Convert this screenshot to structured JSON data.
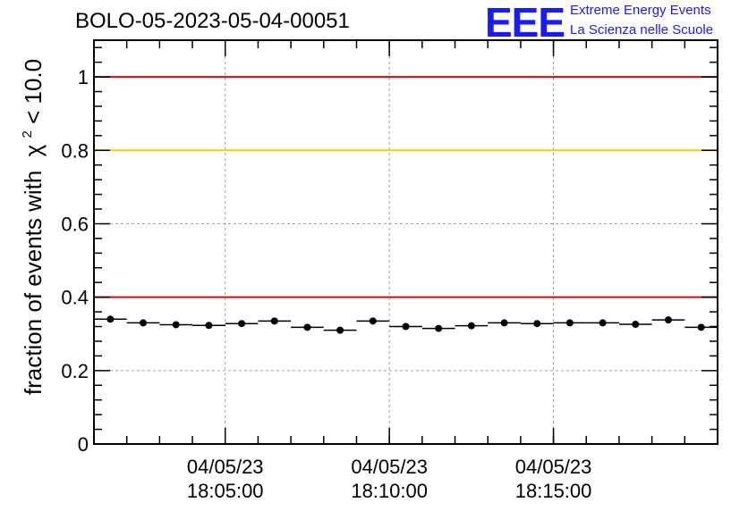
{
  "header": {
    "title": "BOLO-05-2023-05-04-00051",
    "logo_mark": "EEE",
    "logo_line1": "Extreme Energy Events",
    "logo_line2": "La Scienza nelle Scuole"
  },
  "colors": {
    "red_threshold": "#e8000b",
    "yellow_threshold": "#ffcc00",
    "logo": "#1a1aff"
  },
  "chart_data": {
    "type": "scatter",
    "title": "BOLO-05-2023-05-04-00051",
    "ylabel": "fraction of events with",
    "ylabel_chi": "χ",
    "ylabel_sup": "2",
    "ylabel_tail": " < 10.0",
    "xlabel": "",
    "ylim": [
      0,
      1.1
    ],
    "y_ticks": [
      {
        "value": 0,
        "label": "0"
      },
      {
        "value": 0.2,
        "label": "0.2"
      },
      {
        "value": 0.4,
        "label": "0.4"
      },
      {
        "value": 0.6,
        "label": "0.6"
      },
      {
        "value": 0.8,
        "label": "0.8"
      },
      {
        "value": 1.0,
        "label": "1"
      }
    ],
    "x_range": [
      "18:01:00",
      "18:20:00"
    ],
    "x_ticks": [
      {
        "time": "18:05:00",
        "date": "04/05/23"
      },
      {
        "time": "18:10:00",
        "date": "04/05/23"
      },
      {
        "time": "18:15:00",
        "date": "04/05/23"
      }
    ],
    "bin_width_seconds": 60,
    "grid": true,
    "reference_lines": [
      {
        "value": 1.0,
        "color": "#e8000b"
      },
      {
        "value": 0.8,
        "color": "#ffcc00"
      },
      {
        "value": 0.4,
        "color": "#e8000b"
      }
    ],
    "series": [
      {
        "bin_start": [
          "18:01:00",
          "18:02:00",
          "18:03:00",
          "18:04:00",
          "18:05:00",
          "18:06:00",
          "18:07:00",
          "18:08:00",
          "18:09:00",
          "18:10:00",
          "18:11:00",
          "18:12:00",
          "18:13:00",
          "18:14:00",
          "18:15:00",
          "18:16:00",
          "18:17:00",
          "18:18:00",
          "18:19:00"
        ],
        "values": [
          0.34,
          0.33,
          0.325,
          0.323,
          0.328,
          0.335,
          0.318,
          0.31,
          0.335,
          0.32,
          0.315,
          0.322,
          0.33,
          0.328,
          0.33,
          0.33,
          0.326,
          0.338,
          0.318
        ],
        "errors": [
          0.008,
          0.008,
          0.008,
          0.008,
          0.008,
          0.008,
          0.008,
          0.008,
          0.008,
          0.008,
          0.008,
          0.008,
          0.008,
          0.008,
          0.008,
          0.008,
          0.008,
          0.008,
          0.008
        ]
      }
    ]
  }
}
